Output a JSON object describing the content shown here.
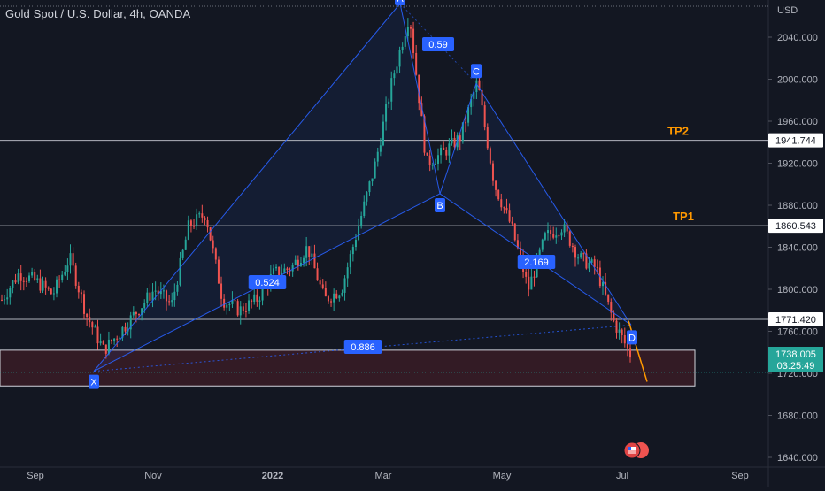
{
  "header": {
    "symbol_title": "Gold Spot / U.S. Dollar, 4h, OANDA",
    "currency": "USD"
  },
  "chart_data": {
    "type": "candlestick",
    "ylim": [
      1630,
      2062
    ],
    "y_ticks": [
      "2040.000",
      "2000.000",
      "1960.000",
      "1920.000",
      "1880.000",
      "1840.000",
      "1800.000",
      "1760.000",
      "1720.000",
      "1680.000",
      "1640.000"
    ],
    "x_ticks": [
      "Sep",
      "Nov",
      "2022",
      "Mar",
      "May",
      "Jul",
      "Sep"
    ],
    "price_path": [
      {
        "t": "Aug",
        "p": 1790
      },
      {
        "t": "mid-Aug",
        "p": 1815
      },
      {
        "t": "late Aug",
        "p": 1808
      },
      {
        "t": "Sep",
        "p": 1795
      },
      {
        "t": "early Sep",
        "p": 1830
      },
      {
        "t": "mid-Sep",
        "p": 1775
      },
      {
        "t": "late Sep",
        "p": 1742
      },
      {
        "t": "Oct",
        "p": 1760
      },
      {
        "t": "mid-Oct",
        "p": 1780
      },
      {
        "t": "late Oct",
        "p": 1800
      },
      {
        "t": "Nov",
        "p": 1785
      },
      {
        "t": "early Nov",
        "p": 1860
      },
      {
        "t": "mid-Nov",
        "p": 1872
      },
      {
        "t": "late Nov",
        "p": 1790
      },
      {
        "t": "Dec",
        "p": 1780
      },
      {
        "t": "mid-Dec",
        "p": 1790
      },
      {
        "t": "late Dec",
        "p": 1815
      },
      {
        "t": "Jan",
        "p": 1820
      },
      {
        "t": "mid-Jan",
        "p": 1840
      },
      {
        "t": "late Jan",
        "p": 1790
      },
      {
        "t": "Feb",
        "p": 1800
      },
      {
        "t": "mid-Feb",
        "p": 1860
      },
      {
        "t": "late Feb",
        "p": 1920
      },
      {
        "t": "Mar",
        "p": 2000
      },
      {
        "t": "early Mar",
        "p": 2062
      },
      {
        "t": "mid-Mar",
        "p": 1920
      },
      {
        "t": "late Mar",
        "p": 1930
      },
      {
        "t": "early Apr",
        "p": 1945
      },
      {
        "t": "mid-Apr",
        "p": 1998
      },
      {
        "t": "late Apr",
        "p": 1900
      },
      {
        "t": "May",
        "p": 1860
      },
      {
        "t": "mid-May",
        "p": 1800
      },
      {
        "t": "late May",
        "p": 1850
      },
      {
        "t": "Jun",
        "p": 1860
      },
      {
        "t": "mid-Jun",
        "p": 1830
      },
      {
        "t": "late Jun",
        "p": 1820
      },
      {
        "t": "Jul",
        "p": 1770
      },
      {
        "t": "early Jul",
        "p": 1738
      }
    ],
    "pattern": {
      "points": [
        {
          "label": "X",
          "p": 1722
        },
        {
          "label": "A",
          "p": 2072
        },
        {
          "label": "B",
          "p": 1891
        },
        {
          "label": "C",
          "p": 1996
        },
        {
          "label": "D",
          "p": 1766
        }
      ],
      "ratios": [
        {
          "label": "0.59",
          "leg": "XA-AB"
        },
        {
          "label": "0.524",
          "leg": "X-B"
        },
        {
          "label": "2.169",
          "leg": "B-D"
        },
        {
          "label": "0.886",
          "leg": "X-D"
        }
      ]
    },
    "horizontal_levels": [
      {
        "price_label": "1941.744",
        "p": 1941.744,
        "annotation": "TP2"
      },
      {
        "price_label": "1860.543",
        "p": 1860.543,
        "annotation": "TP1"
      },
      {
        "price_label": "1771.420",
        "p": 1771.42,
        "annotation": ""
      }
    ],
    "current_price": {
      "label": "1738.005",
      "countdown": "03:25:49",
      "p": 1738.005
    },
    "zone": {
      "top": 1742,
      "bottom": 1708
    },
    "projection": {
      "from": 1770,
      "to": 1712
    },
    "colors": {
      "background": "#131722",
      "up": "#26a69a",
      "down": "#ef5350",
      "pattern": "#2962ff",
      "label_bg": "#2962ff",
      "level": "#b2b5be",
      "tp_text": "#ff9800",
      "projection": "#ff9800",
      "zone_fill": "#3a1c26",
      "price_tag": "#26a69a"
    }
  }
}
